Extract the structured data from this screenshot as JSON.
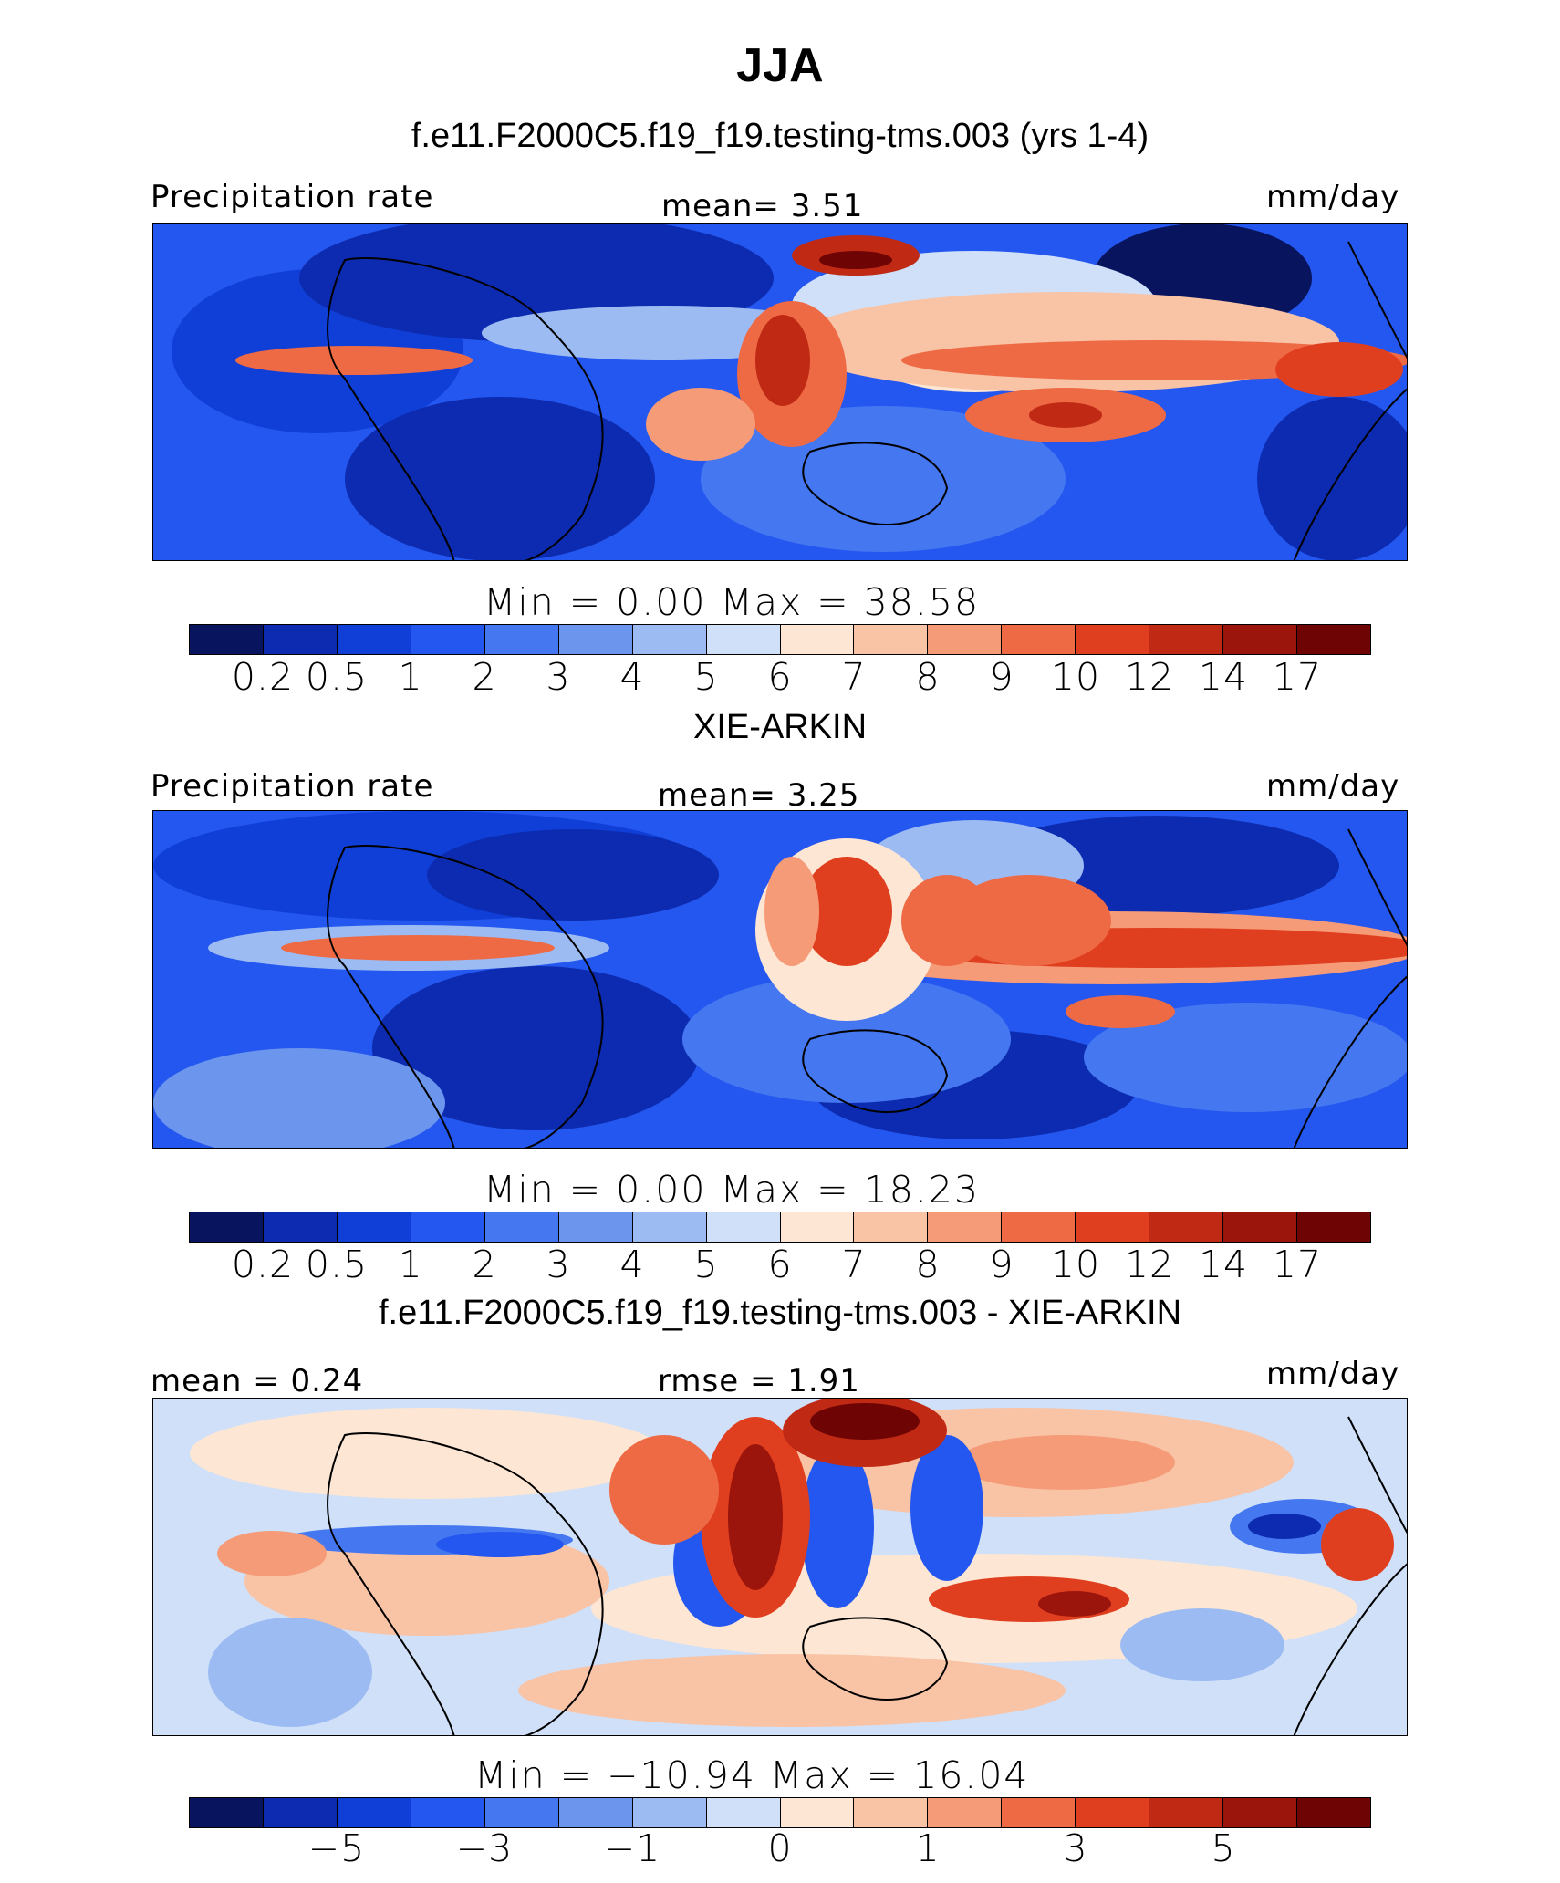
{
  "title": "JJA",
  "panels": [
    {
      "subtitle": "f.e11.F2000C5.f19_f19.testing-tms.003 (yrs 1-4)",
      "left_label": "Precipitation rate",
      "center_label": "mean=    3.51",
      "right_label": "mm/day",
      "stats": "Min  =    0.00  Max  =   38.58",
      "tick_labels": [
        "0.2",
        "0.5",
        "1",
        "2",
        "3",
        "4",
        "5",
        "6",
        "7",
        "8",
        "9",
        "10",
        "12",
        "14",
        "17"
      ]
    },
    {
      "subtitle": "XIE-ARKIN",
      "left_label": "Precipitation rate",
      "center_label": "mean=    3.25",
      "right_label": "mm/day",
      "stats": "Min  =    0.00  Max  =   18.23",
      "tick_labels": [
        "0.2",
        "0.5",
        "1",
        "2",
        "3",
        "4",
        "5",
        "6",
        "7",
        "8",
        "9",
        "10",
        "12",
        "14",
        "17"
      ]
    },
    {
      "subtitle": "f.e11.F2000C5.f19_f19.testing-tms.003 - XIE-ARKIN",
      "left_label": "mean =    0.24",
      "center_label": "rmse =    1.91",
      "right_label": "mm/day",
      "stats": "Min  = −10.94  Max  =   16.04",
      "tick_labels": [
        "−5",
        "−3",
        "−1",
        "0",
        "1",
        "3",
        "5"
      ]
    }
  ],
  "colors": {
    "colorbar": [
      "#08145e",
      "#0c2bb0",
      "#0f3fd6",
      "#2457ef",
      "#4477f0",
      "#6c95ee",
      "#9cbbf2",
      "#cfe0f8",
      "#fde6d3",
      "#f9c3a6",
      "#f59b78",
      "#ee6a45",
      "#e03f1f",
      "#c02a15",
      "#9b150c",
      "#6e0504"
    ],
    "land_outline": "#000000"
  },
  "chart_data": [
    {
      "type": "heatmap",
      "title": "f.e11.F2000C5.f19_f19.testing-tms.003 (yrs 1-4)",
      "variable": "Precipitation rate",
      "units": "mm/day",
      "mean": 3.51,
      "min": 0.0,
      "max": 38.58,
      "levels": [
        0.2,
        0.5,
        1,
        2,
        3,
        4,
        5,
        6,
        7,
        8,
        9,
        10,
        12,
        14,
        17
      ]
    },
    {
      "type": "heatmap",
      "title": "XIE-ARKIN",
      "variable": "Precipitation rate",
      "units": "mm/day",
      "mean": 3.25,
      "min": 0.0,
      "max": 18.23,
      "levels": [
        0.2,
        0.5,
        1,
        2,
        3,
        4,
        5,
        6,
        7,
        8,
        9,
        10,
        12,
        14,
        17
      ]
    },
    {
      "type": "heatmap",
      "title": "f.e11.F2000C5.f19_f19.testing-tms.003 - XIE-ARKIN",
      "units": "mm/day",
      "mean": 0.24,
      "rmse": 1.91,
      "min": -10.94,
      "max": 16.04,
      "levels": [
        -5,
        -3,
        -1,
        0,
        1,
        3,
        5
      ]
    }
  ]
}
